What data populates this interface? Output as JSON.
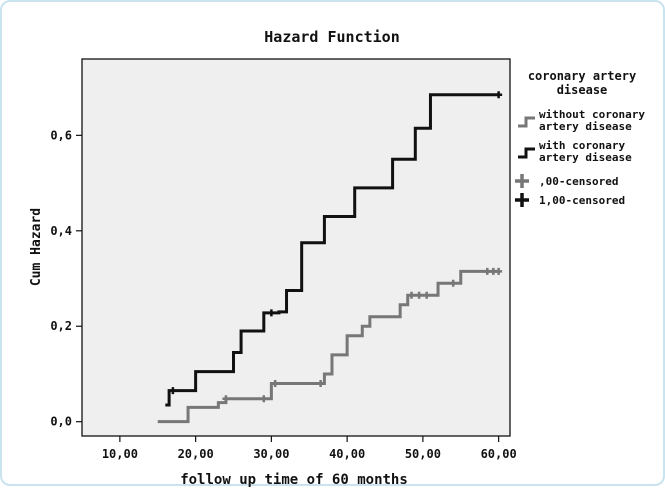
{
  "chart_data": {
    "type": "line",
    "title": "Hazard Function",
    "xlabel": "follow up time of 60 months",
    "ylabel": "Cum Hazard",
    "xlim": [
      5,
      61.5
    ],
    "ylim": [
      -0.03,
      0.76
    ],
    "x_ticks": [
      10,
      20,
      30,
      40,
      50,
      60
    ],
    "x_tick_labels": [
      "10,00",
      "20,00",
      "30,00",
      "40,00",
      "50,00",
      "60,00"
    ],
    "y_ticks": [
      0,
      0.2,
      0.4,
      0.6
    ],
    "y_tick_labels": [
      "0,0",
      "0,2",
      "0,4",
      "0,6"
    ],
    "grid": false,
    "legend_position": "right",
    "legend_title": "coronary artery disease",
    "series": [
      {
        "name": "without coronary artery disease",
        "color": "#777777",
        "step_points": [
          [
            15,
            0.0
          ],
          [
            19,
            0.03
          ],
          [
            23,
            0.04
          ],
          [
            24,
            0.048
          ],
          [
            29,
            0.048
          ],
          [
            30,
            0.08
          ],
          [
            36,
            0.08
          ],
          [
            37,
            0.1
          ],
          [
            38,
            0.14
          ],
          [
            40,
            0.18
          ],
          [
            42,
            0.2
          ],
          [
            43,
            0.22
          ],
          [
            47,
            0.245
          ],
          [
            48,
            0.265
          ],
          [
            52,
            0.29
          ],
          [
            55,
            0.315
          ],
          [
            60,
            0.315
          ]
        ],
        "censored_x": [
          24,
          29,
          30.5,
          36.5,
          48.5,
          49.5,
          50.5,
          54,
          58.5,
          59.3,
          60
        ]
      },
      {
        "name": "with coronary artery disease",
        "color": "#111111",
        "step_points": [
          [
            16,
            0.035
          ],
          [
            16.5,
            0.065
          ],
          [
            20,
            0.105
          ],
          [
            25,
            0.145
          ],
          [
            26,
            0.19
          ],
          [
            29,
            0.228
          ],
          [
            31,
            0.23
          ],
          [
            32,
            0.275
          ],
          [
            34,
            0.375
          ],
          [
            37,
            0.43
          ],
          [
            41,
            0.49
          ],
          [
            46,
            0.55
          ],
          [
            49,
            0.615
          ],
          [
            51,
            0.685
          ],
          [
            60,
            0.685
          ]
        ],
        "censored_x": [
          17,
          30,
          60
        ]
      }
    ],
    "legend_censored": [
      {
        "label": ",00-censored",
        "color": "#777777"
      },
      {
        "label": "1,00-censored",
        "color": "#111111"
      }
    ]
  }
}
